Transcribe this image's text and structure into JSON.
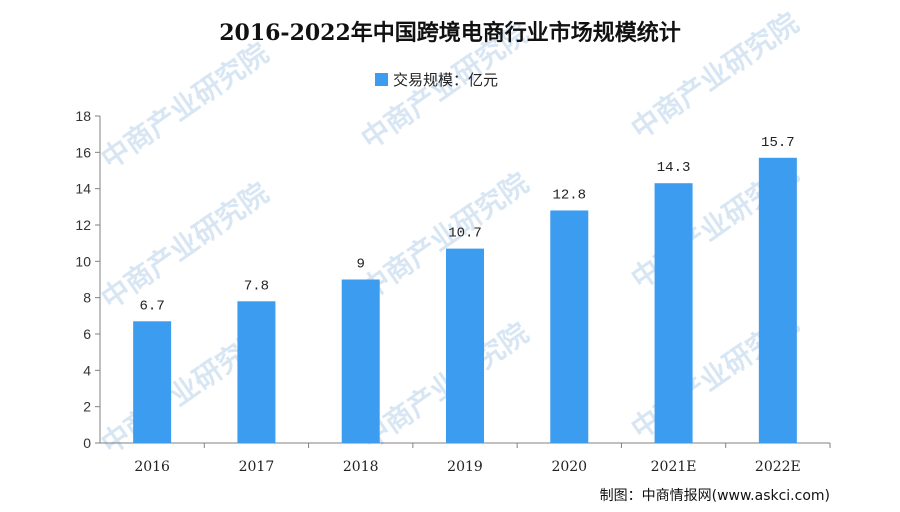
{
  "chart_data": {
    "type": "bar",
    "title": "2016-2022年中国跨境电商行业市场规模统计",
    "legend": {
      "label": "交易规模：亿元",
      "position": "top-center"
    },
    "categories": [
      "2016",
      "2017",
      "2018",
      "2019",
      "2020",
      "2021E",
      "2022E"
    ],
    "series": [
      {
        "name": "交易规模：亿元",
        "values": [
          6.7,
          7.8,
          9,
          10.7,
          12.8,
          14.3,
          15.7
        ],
        "color": "#3c9cf0"
      }
    ],
    "data_labels": [
      "6.7",
      "7.8",
      "9",
      "10.7",
      "12.8",
      "14.3",
      "15.7"
    ],
    "ylim": [
      0,
      18
    ],
    "yticks": [
      0,
      2,
      4,
      6,
      8,
      10,
      12,
      14,
      16,
      18
    ],
    "grid": false
  },
  "source": "制图：中商情报网(www.askci.com)",
  "watermark": "中商产业研究院",
  "colors": {
    "bar": "#3c9cf0",
    "watermark": "#b9d3ec",
    "axis": "#808080"
  }
}
